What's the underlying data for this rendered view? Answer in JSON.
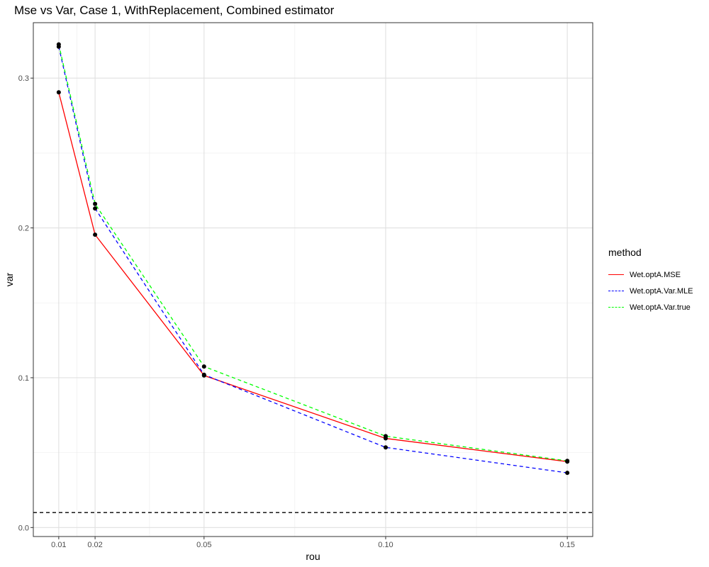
{
  "chart_data": {
    "type": "line",
    "title": "Mse vs Var, Case 1, WithReplacement, Combined estimator",
    "xlabel": "rou",
    "ylabel": "var",
    "x_ticks": [
      0.01,
      0.02,
      0.05,
      0.1,
      0.15
    ],
    "x_tick_labels": [
      "0.01",
      "0.02",
      "0.05",
      "0.10",
      "0.15"
    ],
    "y_ticks": [
      0.0,
      0.1,
      0.2,
      0.3
    ],
    "y_tick_labels": [
      "0.0",
      "0.1",
      "0.2",
      "0.3"
    ],
    "xlim": [
      0.003,
      0.157
    ],
    "ylim": [
      -0.006,
      0.337
    ],
    "x": [
      0.01,
      0.02,
      0.05,
      0.1,
      0.15
    ],
    "series": [
      {
        "name": "Wet.optA.MSE",
        "values": [
          0.2905,
          0.1955,
          0.1015,
          0.0595,
          0.044
        ],
        "color": "#ff0000",
        "dash": "solid"
      },
      {
        "name": "Wet.optA.Var.MLE",
        "values": [
          0.321,
          0.213,
          0.102,
          0.0535,
          0.0365
        ],
        "color": "#0000ff",
        "dash": "dashed"
      },
      {
        "name": "Wet.optA.Var.true",
        "values": [
          0.3225,
          0.216,
          0.1075,
          0.061,
          0.0445
        ],
        "color": "#00ff00",
        "dash": "dashed"
      }
    ],
    "hline": {
      "y": 0.01,
      "color": "#000000",
      "dash": "dashed"
    },
    "grid": true,
    "legend": {
      "title": "method",
      "position": "right"
    }
  }
}
